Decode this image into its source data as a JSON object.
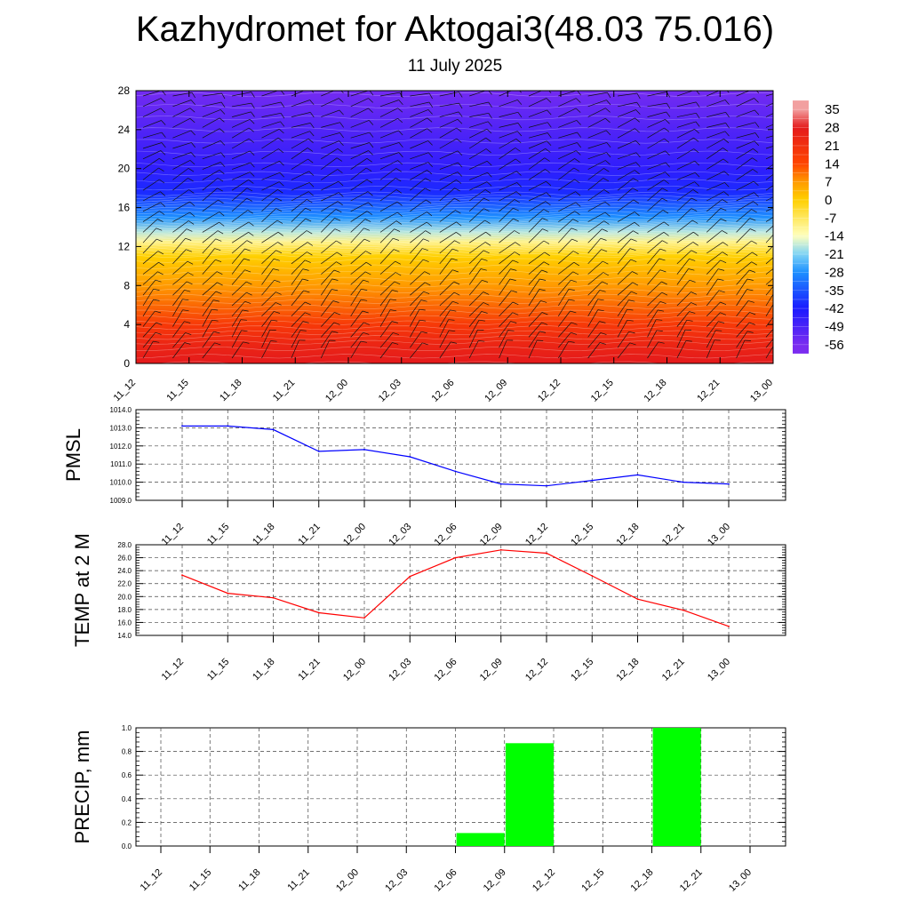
{
  "header": {
    "title": "Kazhydromet for Aktogai3(48.03 75.016)",
    "date": "11 July 2025"
  },
  "time_labels": [
    "11_12",
    "11_15",
    "11_18",
    "11_21",
    "12_00",
    "12_03",
    "12_06",
    "12_09",
    "12_12",
    "12_15",
    "12_18",
    "12_21",
    "13_00"
  ],
  "chart_data": [
    {
      "id": "temperature-cross-section",
      "type": "heatmap",
      "title": "",
      "xlabel": "",
      "ylabel": "",
      "x": [
        "11_12",
        "11_15",
        "11_18",
        "11_21",
        "12_00",
        "12_03",
        "12_06",
        "12_09",
        "12_12",
        "12_15",
        "12_18",
        "12_21",
        "13_00"
      ],
      "ylim": [
        0,
        28
      ],
      "yticks": [
        0,
        4,
        8,
        12,
        16,
        20,
        24,
        28
      ],
      "colorbar": {
        "labels": [
          "35",
          "28",
          "21",
          "14",
          "7",
          "0",
          "-7",
          "-14",
          "-21",
          "-28",
          "-35",
          "-42",
          "-49",
          "-56"
        ],
        "stops": [
          {
            "value": 35,
            "color": "#f2a0a0"
          },
          {
            "value": 28,
            "color": "#e41a1c"
          },
          {
            "value": 14,
            "color": "#ff4500"
          },
          {
            "value": 7,
            "color": "#ff9a00"
          },
          {
            "value": 0,
            "color": "#ffd000"
          },
          {
            "value": -14,
            "color": "#ffffbf"
          },
          {
            "value": -21,
            "color": "#7fd4f5"
          },
          {
            "value": -28,
            "color": "#1e90ff"
          },
          {
            "value": -42,
            "color": "#1a1aff"
          },
          {
            "value": -56,
            "color": "#7b2cf0"
          }
        ]
      },
      "temperature_profile": [
        {
          "height": 0,
          "temp": 28
        },
        {
          "height": 2,
          "temp": 24
        },
        {
          "height": 4,
          "temp": 18
        },
        {
          "height": 8,
          "temp": 7
        },
        {
          "height": 11,
          "temp": 0
        },
        {
          "height": 12.5,
          "temp": -10
        },
        {
          "height": 13.5,
          "temp": -18
        },
        {
          "height": 15,
          "temp": -28
        },
        {
          "height": 17.5,
          "temp": -40
        },
        {
          "height": 20,
          "temp": -45
        },
        {
          "height": 24,
          "temp": -50
        },
        {
          "height": 28,
          "temp": -55
        }
      ],
      "wind_barbs": true,
      "legend": "colorbar right"
    },
    {
      "id": "pmsl",
      "type": "line",
      "ylabel": "PMSL",
      "x": [
        "11_12",
        "11_15",
        "11_18",
        "11_21",
        "12_00",
        "12_03",
        "12_06",
        "12_09",
        "12_12",
        "12_15",
        "12_18",
        "12_21",
        "13_00"
      ],
      "values": [
        1013.1,
        1013.1,
        1012.9,
        1011.7,
        1011.8,
        1011.4,
        1010.6,
        1009.9,
        1009.8,
        1010.1,
        1010.4,
        1010.0,
        1009.9
      ],
      "ylim": [
        1009.0,
        1014.0
      ],
      "yticks": [
        "1009.0",
        "1010.0",
        "1011.0",
        "1012.0",
        "1013.0",
        "1014.0"
      ],
      "color": "#0000ff",
      "grid": true
    },
    {
      "id": "temp-2m",
      "type": "line",
      "ylabel": "TEMP at 2 M",
      "x": [
        "11_12",
        "11_15",
        "11_18",
        "11_21",
        "12_00",
        "12_03",
        "12_06",
        "12_09",
        "12_12",
        "12_15",
        "12_18",
        "12_21",
        "13_00"
      ],
      "values": [
        23.3,
        20.5,
        19.8,
        17.5,
        16.7,
        23.1,
        26.0,
        27.2,
        26.7,
        23.2,
        19.6,
        17.9,
        15.4
      ],
      "ylim": [
        14.0,
        28.0
      ],
      "yticks": [
        "14.0",
        "16.0",
        "18.0",
        "20.0",
        "22.0",
        "24.0",
        "26.0",
        "28.0"
      ],
      "color": "#ff0000",
      "grid": true
    },
    {
      "id": "precip",
      "type": "bar",
      "ylabel": "PRECIP, mm",
      "categories": [
        "11_12",
        "11_15",
        "11_18",
        "11_21",
        "12_00",
        "12_03",
        "12_06",
        "12_09",
        "12_12",
        "12_15",
        "12_18",
        "12_21",
        "13_00"
      ],
      "values": [
        0,
        0,
        0,
        0,
        0,
        0,
        0,
        0.11,
        0.87,
        0,
        0,
        1.0,
        0
      ],
      "ylim": [
        0,
        1.0
      ],
      "yticks": [
        "0.0",
        "0.2",
        "0.4",
        "0.6",
        "0.8",
        "1.0"
      ],
      "color": "#00ff00",
      "grid": true
    }
  ]
}
